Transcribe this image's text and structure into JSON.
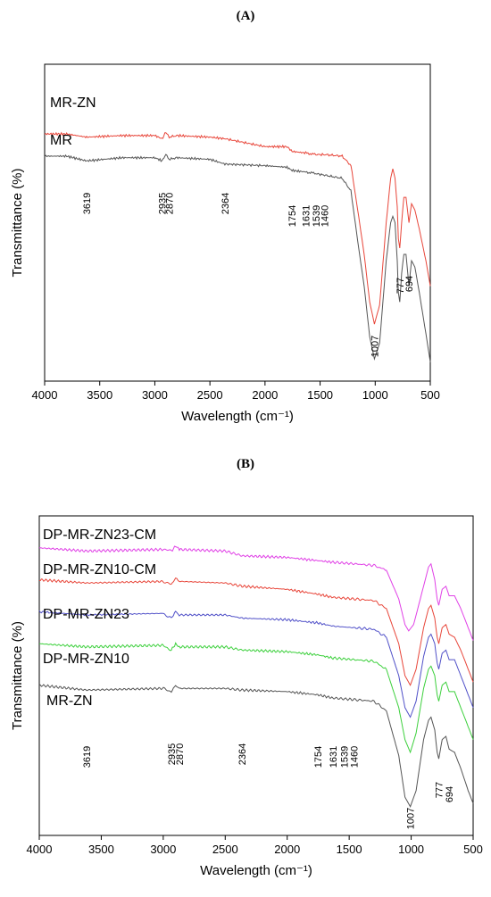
{
  "panels": [
    {
      "label": "(A)"
    },
    {
      "label": "(B)"
    }
  ],
  "chart_data": [
    {
      "type": "line",
      "panel": "(A)",
      "xlabel": "Wavelength (cm⁻¹)",
      "ylabel": "Transmittance (%)",
      "xlim": [
        4000,
        500
      ],
      "x_ticks": [
        4000,
        3500,
        3000,
        2500,
        2000,
        1500,
        1000,
        500
      ],
      "grid": false,
      "legend": "inline labels above curves",
      "series": [
        {
          "name": "MR-ZN",
          "color": "#e8463a",
          "points": [
            [
              4000,
              0.78
            ],
            [
              3800,
              0.78
            ],
            [
              3619,
              0.77
            ],
            [
              3300,
              0.775
            ],
            [
              3000,
              0.775
            ],
            [
              2935,
              0.765
            ],
            [
              2900,
              0.785
            ],
            [
              2870,
              0.77
            ],
            [
              2800,
              0.775
            ],
            [
              2500,
              0.77
            ],
            [
              2364,
              0.765
            ],
            [
              2000,
              0.74
            ],
            [
              1800,
              0.74
            ],
            [
              1754,
              0.725
            ],
            [
              1631,
              0.72
            ],
            [
              1539,
              0.715
            ],
            [
              1460,
              0.715
            ],
            [
              1300,
              0.71
            ],
            [
              1220,
              0.68
            ],
            [
              1150,
              0.52
            ],
            [
              1100,
              0.4
            ],
            [
              1050,
              0.25
            ],
            [
              1007,
              0.18
            ],
            [
              960,
              0.24
            ],
            [
              900,
              0.5
            ],
            [
              860,
              0.64
            ],
            [
              840,
              0.67
            ],
            [
              820,
              0.64
            ],
            [
              800,
              0.55
            ],
            [
              790,
              0.45
            ],
            [
              777,
              0.42
            ],
            [
              760,
              0.5
            ],
            [
              740,
              0.58
            ],
            [
              720,
              0.58
            ],
            [
              694,
              0.5
            ],
            [
              670,
              0.56
            ],
            [
              640,
              0.54
            ],
            [
              600,
              0.48
            ],
            [
              540,
              0.38
            ],
            [
              500,
              0.3
            ]
          ]
        },
        {
          "name": "MR",
          "color": "#555555",
          "points": [
            [
              4000,
              0.71
            ],
            [
              3800,
              0.71
            ],
            [
              3619,
              0.695
            ],
            [
              3300,
              0.705
            ],
            [
              3000,
              0.705
            ],
            [
              2935,
              0.695
            ],
            [
              2900,
              0.715
            ],
            [
              2870,
              0.7
            ],
            [
              2800,
              0.705
            ],
            [
              2500,
              0.7
            ],
            [
              2364,
              0.685
            ],
            [
              2000,
              0.68
            ],
            [
              1800,
              0.675
            ],
            [
              1754,
              0.665
            ],
            [
              1631,
              0.66
            ],
            [
              1539,
              0.655
            ],
            [
              1460,
              0.65
            ],
            [
              1300,
              0.64
            ],
            [
              1220,
              0.6
            ],
            [
              1150,
              0.42
            ],
            [
              1100,
              0.3
            ],
            [
              1050,
              0.14
            ],
            [
              1007,
              0.07
            ],
            [
              960,
              0.12
            ],
            [
              900,
              0.38
            ],
            [
              860,
              0.5
            ],
            [
              840,
              0.52
            ],
            [
              820,
              0.5
            ],
            [
              800,
              0.38
            ],
            [
              790,
              0.28
            ],
            [
              777,
              0.25
            ],
            [
              760,
              0.34
            ],
            [
              740,
              0.4
            ],
            [
              720,
              0.4
            ],
            [
              694,
              0.3
            ],
            [
              670,
              0.38
            ],
            [
              640,
              0.36
            ],
            [
              600,
              0.28
            ],
            [
              540,
              0.15
            ],
            [
              500,
              0.06
            ]
          ]
        }
      ],
      "annotations": [
        "3619",
        "2935",
        "2870",
        "2364",
        "1754",
        "1631",
        "1539",
        "1460",
        "1007",
        "777",
        "694"
      ]
    },
    {
      "type": "line",
      "panel": "(B)",
      "xlabel": "Wavelength (cm⁻¹)",
      "ylabel": "Transmittance (%)",
      "xlim": [
        4000,
        500
      ],
      "x_ticks": [
        4000,
        3500,
        3000,
        2500,
        2000,
        1500,
        1000,
        500
      ],
      "grid": false,
      "legend": "inline labels above curves",
      "series": [
        {
          "name": "DP-MR-ZN23-CM",
          "color": "#e040e6",
          "points": [
            [
              4000,
              0.9
            ],
            [
              3619,
              0.89
            ],
            [
              3000,
              0.895
            ],
            [
              2935,
              0.89
            ],
            [
              2900,
              0.905
            ],
            [
              2870,
              0.895
            ],
            [
              2500,
              0.89
            ],
            [
              2364,
              0.875
            ],
            [
              2000,
              0.87
            ],
            [
              1754,
              0.86
            ],
            [
              1631,
              0.855
            ],
            [
              1460,
              0.85
            ],
            [
              1300,
              0.845
            ],
            [
              1200,
              0.83
            ],
            [
              1100,
              0.74
            ],
            [
              1050,
              0.66
            ],
            [
              1020,
              0.64
            ],
            [
              980,
              0.66
            ],
            [
              900,
              0.78
            ],
            [
              860,
              0.84
            ],
            [
              840,
              0.85
            ],
            [
              810,
              0.8
            ],
            [
              790,
              0.74
            ],
            [
              777,
              0.72
            ],
            [
              750,
              0.77
            ],
            [
              720,
              0.78
            ],
            [
              694,
              0.75
            ],
            [
              650,
              0.75
            ],
            [
              600,
              0.71
            ],
            [
              540,
              0.65
            ],
            [
              500,
              0.61
            ]
          ]
        },
        {
          "name": "DP-MR-ZN10-CM",
          "color": "#e8463a",
          "points": [
            [
              4000,
              0.8
            ],
            [
              3619,
              0.79
            ],
            [
              3000,
              0.795
            ],
            [
              2935,
              0.785
            ],
            [
              2900,
              0.805
            ],
            [
              2870,
              0.795
            ],
            [
              2500,
              0.79
            ],
            [
              2364,
              0.78
            ],
            [
              2000,
              0.77
            ],
            [
              1754,
              0.755
            ],
            [
              1631,
              0.745
            ],
            [
              1460,
              0.74
            ],
            [
              1300,
              0.735
            ],
            [
              1200,
              0.71
            ],
            [
              1100,
              0.6
            ],
            [
              1050,
              0.5
            ],
            [
              1007,
              0.47
            ],
            [
              960,
              0.52
            ],
            [
              900,
              0.65
            ],
            [
              860,
              0.71
            ],
            [
              840,
              0.72
            ],
            [
              810,
              0.68
            ],
            [
              790,
              0.62
            ],
            [
              777,
              0.6
            ],
            [
              750,
              0.65
            ],
            [
              720,
              0.66
            ],
            [
              694,
              0.63
            ],
            [
              650,
              0.62
            ],
            [
              600,
              0.58
            ],
            [
              540,
              0.52
            ],
            [
              500,
              0.48
            ]
          ]
        },
        {
          "name": "DP-MR-ZN23",
          "color": "#5050c8",
          "points": [
            [
              4000,
              0.7
            ],
            [
              3619,
              0.69
            ],
            [
              3000,
              0.695
            ],
            [
              2935,
              0.68
            ],
            [
              2900,
              0.7
            ],
            [
              2870,
              0.69
            ],
            [
              2500,
              0.69
            ],
            [
              2364,
              0.68
            ],
            [
              2000,
              0.675
            ],
            [
              1754,
              0.665
            ],
            [
              1631,
              0.655
            ],
            [
              1460,
              0.65
            ],
            [
              1300,
              0.645
            ],
            [
              1200,
              0.62
            ],
            [
              1100,
              0.5
            ],
            [
              1050,
              0.4
            ],
            [
              1007,
              0.37
            ],
            [
              960,
              0.42
            ],
            [
              900,
              0.56
            ],
            [
              860,
              0.62
            ],
            [
              840,
              0.63
            ],
            [
              810,
              0.6
            ],
            [
              790,
              0.54
            ],
            [
              777,
              0.52
            ],
            [
              750,
              0.57
            ],
            [
              720,
              0.58
            ],
            [
              694,
              0.55
            ],
            [
              650,
              0.55
            ],
            [
              600,
              0.5
            ],
            [
              540,
              0.44
            ],
            [
              500,
              0.4
            ]
          ]
        },
        {
          "name": "DP-MR-ZN10",
          "color": "#3cd03c",
          "points": [
            [
              4000,
              0.6
            ],
            [
              3619,
              0.59
            ],
            [
              3000,
              0.595
            ],
            [
              2935,
              0.58
            ],
            [
              2900,
              0.6
            ],
            [
              2870,
              0.59
            ],
            [
              2500,
              0.59
            ],
            [
              2364,
              0.58
            ],
            [
              2000,
              0.575
            ],
            [
              1754,
              0.565
            ],
            [
              1631,
              0.555
            ],
            [
              1460,
              0.55
            ],
            [
              1300,
              0.545
            ],
            [
              1200,
              0.52
            ],
            [
              1100,
              0.4
            ],
            [
              1050,
              0.3
            ],
            [
              1007,
              0.26
            ],
            [
              960,
              0.32
            ],
            [
              900,
              0.46
            ],
            [
              860,
              0.52
            ],
            [
              840,
              0.53
            ],
            [
              810,
              0.5
            ],
            [
              790,
              0.44
            ],
            [
              777,
              0.42
            ],
            [
              750,
              0.47
            ],
            [
              720,
              0.48
            ],
            [
              694,
              0.45
            ],
            [
              650,
              0.45
            ],
            [
              600,
              0.4
            ],
            [
              540,
              0.34
            ],
            [
              500,
              0.3
            ]
          ]
        },
        {
          "name": "MR-ZN",
          "color": "#555555",
          "points": [
            [
              4000,
              0.47
            ],
            [
              3619,
              0.455
            ],
            [
              3000,
              0.46
            ],
            [
              2935,
              0.45
            ],
            [
              2900,
              0.47
            ],
            [
              2870,
              0.46
            ],
            [
              2500,
              0.46
            ],
            [
              2364,
              0.455
            ],
            [
              2000,
              0.45
            ],
            [
              1754,
              0.44
            ],
            [
              1631,
              0.43
            ],
            [
              1460,
              0.425
            ],
            [
              1300,
              0.42
            ],
            [
              1200,
              0.39
            ],
            [
              1100,
              0.25
            ],
            [
              1050,
              0.12
            ],
            [
              1007,
              0.09
            ],
            [
              960,
              0.14
            ],
            [
              900,
              0.3
            ],
            [
              860,
              0.36
            ],
            [
              840,
              0.37
            ],
            [
              810,
              0.33
            ],
            [
              790,
              0.26
            ],
            [
              777,
              0.24
            ],
            [
              750,
              0.3
            ],
            [
              720,
              0.31
            ],
            [
              694,
              0.27
            ],
            [
              650,
              0.26
            ],
            [
              600,
              0.21
            ],
            [
              540,
              0.14
            ],
            [
              500,
              0.1
            ]
          ]
        }
      ],
      "annotations": [
        "3619",
        "2935",
        "2870",
        "2364",
        "1754",
        "1631",
        "1539",
        "1460",
        "1007",
        "777",
        "694"
      ]
    }
  ]
}
